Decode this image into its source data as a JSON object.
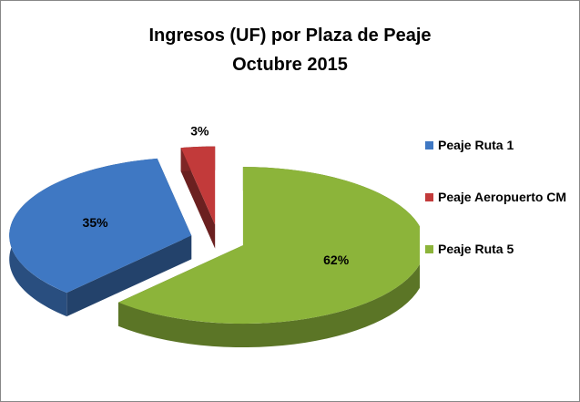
{
  "chart_data": {
    "type": "pie",
    "title": "Ingresos (UF) por Plaza de Peaje",
    "subtitle": "Octubre 2015",
    "categories": [
      "Peaje Ruta 1",
      "Peaje Aeropuerto CM",
      "Peaje Ruta 5"
    ],
    "values": [
      35,
      3,
      62
    ],
    "value_labels": [
      "35%",
      "3%",
      "62%"
    ],
    "colors": [
      "#3f78c3",
      "#c23a3a",
      "#8cb43a"
    ],
    "legend": "right"
  }
}
